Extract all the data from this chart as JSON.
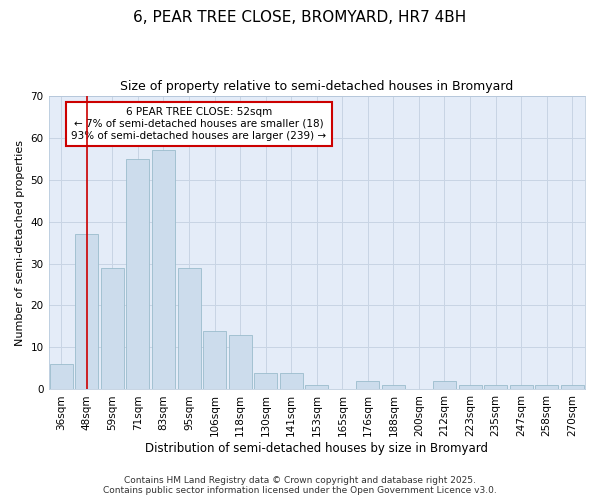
{
  "title1": "6, PEAR TREE CLOSE, BROMYARD, HR7 4BH",
  "title2": "Size of property relative to semi-detached houses in Bromyard",
  "xlabel": "Distribution of semi-detached houses by size in Bromyard",
  "ylabel": "Number of semi-detached properties",
  "categories": [
    "36sqm",
    "48sqm",
    "59sqm",
    "71sqm",
    "83sqm",
    "95sqm",
    "106sqm",
    "118sqm",
    "130sqm",
    "141sqm",
    "153sqm",
    "165sqm",
    "176sqm",
    "188sqm",
    "200sqm",
    "212sqm",
    "223sqm",
    "235sqm",
    "247sqm",
    "258sqm",
    "270sqm"
  ],
  "values": [
    6,
    37,
    29,
    55,
    57,
    29,
    14,
    13,
    4,
    4,
    1,
    0,
    2,
    1,
    0,
    2,
    1,
    1,
    1,
    1,
    1
  ],
  "bar_color": "#ccdcec",
  "bar_edge_color": "#9bbccc",
  "red_line_index": 1,
  "annotation_line1": "6 PEAR TREE CLOSE: 52sqm",
  "annotation_line2": "← 7% of semi-detached houses are smaller (18)",
  "annotation_line3": "93% of semi-detached houses are larger (239) →",
  "annotation_box_color": "#ffffff",
  "annotation_box_edge_color": "#cc0000",
  "red_line_color": "#cc0000",
  "ylim": [
    0,
    70
  ],
  "yticks": [
    0,
    10,
    20,
    30,
    40,
    50,
    60,
    70
  ],
  "grid_color": "#c8d4e4",
  "background_color": "#e4ecf8",
  "footer1": "Contains HM Land Registry data © Crown copyright and database right 2025.",
  "footer2": "Contains public sector information licensed under the Open Government Licence v3.0.",
  "title1_fontsize": 11,
  "title2_fontsize": 9,
  "xlabel_fontsize": 8.5,
  "ylabel_fontsize": 8,
  "tick_fontsize": 7.5,
  "annotation_fontsize": 7.5,
  "footer_fontsize": 6.5
}
